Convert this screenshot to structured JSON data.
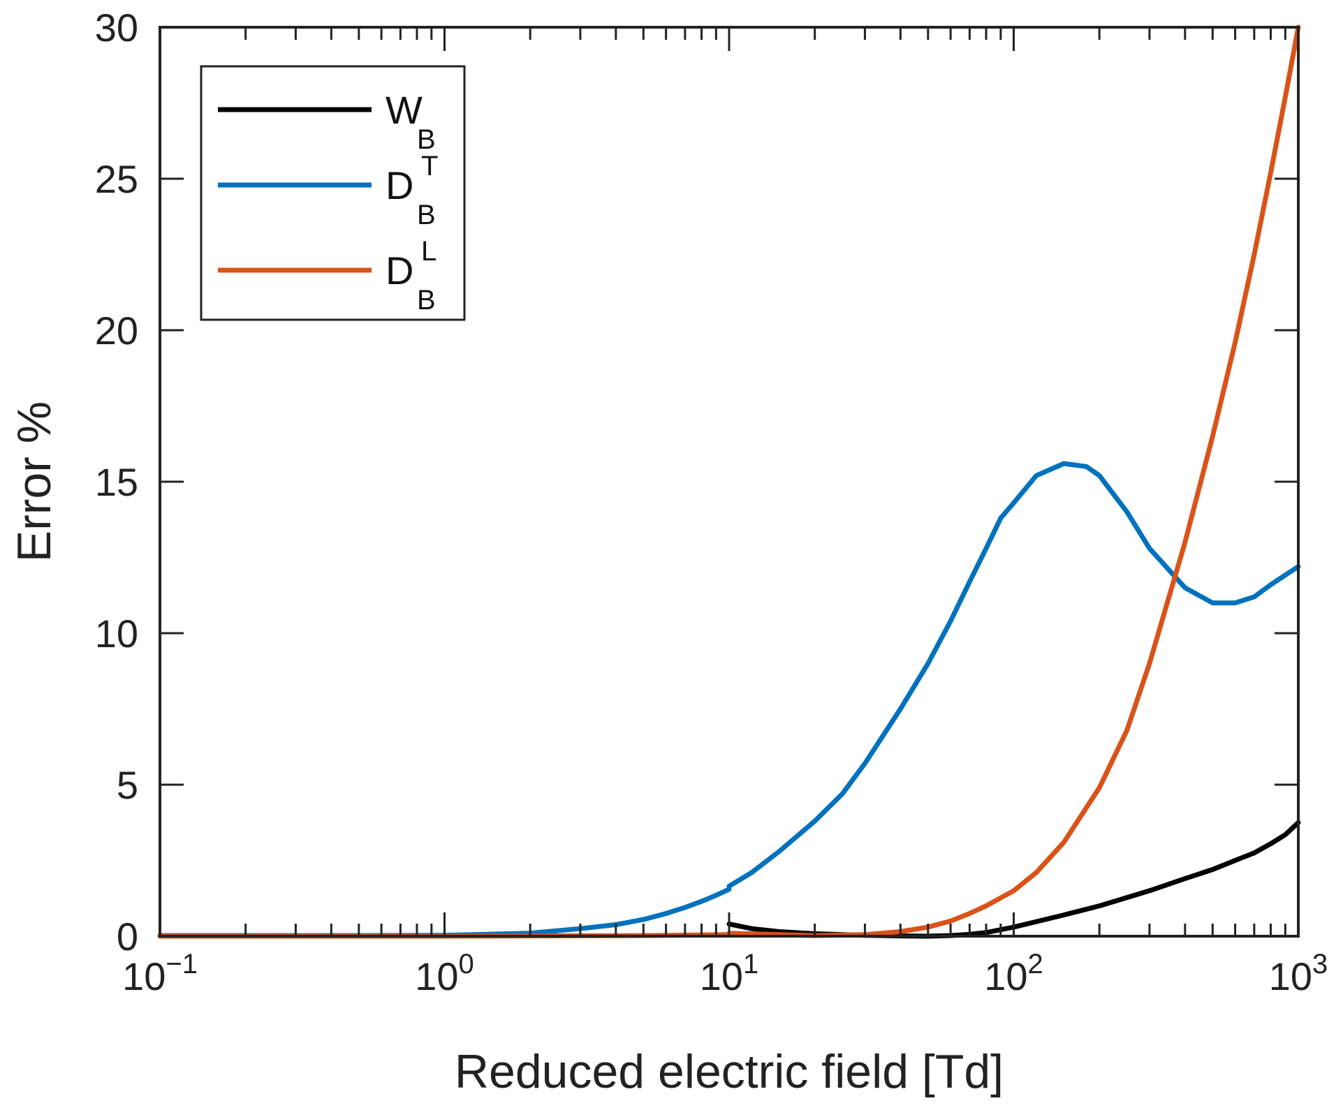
{
  "chart_data": {
    "type": "line",
    "title": "",
    "xlabel": "Reduced electric field [Td]",
    "ylabel": "Error %",
    "xscale": "log",
    "xlim": [
      0.1,
      1000
    ],
    "ylim": [
      0,
      30
    ],
    "grid": false,
    "legend_position": "top-left",
    "x_ticks": [
      {
        "base": "10",
        "exp": "−1"
      },
      {
        "base": "10",
        "exp": "0"
      },
      {
        "base": "10",
        "exp": "1"
      },
      {
        "base": "10",
        "exp": "2"
      },
      {
        "base": "10",
        "exp": "3"
      }
    ],
    "y_ticks": [
      "0",
      "5",
      "10",
      "15",
      "20",
      "25",
      "30"
    ],
    "series": [
      {
        "name": "W_B",
        "legend_main": "W",
        "legend_sub": "B",
        "legend_sup": "",
        "color": "#000000",
        "segments": [
          {
            "x": [
              10,
              12,
              15,
              20,
              30,
              40,
              50,
              60,
              70,
              80,
              100,
              150,
              200,
              300,
              400,
              500,
              600,
              700,
              800,
              900,
              1000
            ],
            "y": [
              0.4,
              0.25,
              0.15,
              0.08,
              0.03,
              0.01,
              0.0,
              0.02,
              0.06,
              0.12,
              0.3,
              0.7,
              1.0,
              1.5,
              1.9,
              2.2,
              2.5,
              2.75,
              3.05,
              3.35,
              3.75
            ]
          }
        ]
      },
      {
        "name": "D_B^T",
        "legend_main": "D",
        "legend_sub": "B",
        "legend_sup": "T",
        "color": "#0072BD",
        "segments": [
          {
            "x": [
              0.1,
              0.5,
              1,
              2,
              3,
              4,
              5,
              6,
              7,
              8,
              9,
              10
            ],
            "y": [
              0.02,
              0.02,
              0.03,
              0.1,
              0.25,
              0.38,
              0.55,
              0.75,
              0.95,
              1.15,
              1.35,
              1.55
            ]
          },
          {
            "x": [
              10,
              12,
              15,
              20,
              25,
              30,
              40,
              50,
              60,
              70,
              80,
              90,
              100,
              120,
              150,
              180,
              200,
              250,
              300,
              400,
              500,
              600,
              700,
              800,
              1000
            ],
            "y": [
              1.65,
              2.1,
              2.8,
              3.8,
              4.7,
              5.7,
              7.5,
              9.0,
              10.4,
              11.7,
              12.8,
              13.8,
              14.3,
              15.2,
              15.6,
              15.5,
              15.2,
              14.0,
              12.8,
              11.5,
              11.0,
              11.0,
              11.2,
              11.6,
              12.2
            ]
          }
        ]
      },
      {
        "name": "D_B^L",
        "legend_main": "D",
        "legend_sub": "B",
        "legend_sup": "L",
        "color": "#D95319",
        "segments": [
          {
            "x": [
              0.1,
              1,
              5,
              10
            ],
            "y": [
              0.0,
              0.0,
              0.02,
              0.05
            ]
          },
          {
            "x": [
              10,
              15,
              20,
              30,
              40,
              50,
              60,
              70,
              80,
              100,
              120,
              150,
              200,
              250,
              300,
              400,
              500,
              600,
              700,
              800,
              900,
              1000
            ],
            "y": [
              0.1,
              0.05,
              0.02,
              0.05,
              0.15,
              0.3,
              0.5,
              0.75,
              1.0,
              1.5,
              2.1,
              3.1,
              4.9,
              6.8,
              9.0,
              13.0,
              16.5,
              19.6,
              22.5,
              25.2,
              27.7,
              30.0
            ]
          }
        ]
      }
    ]
  }
}
